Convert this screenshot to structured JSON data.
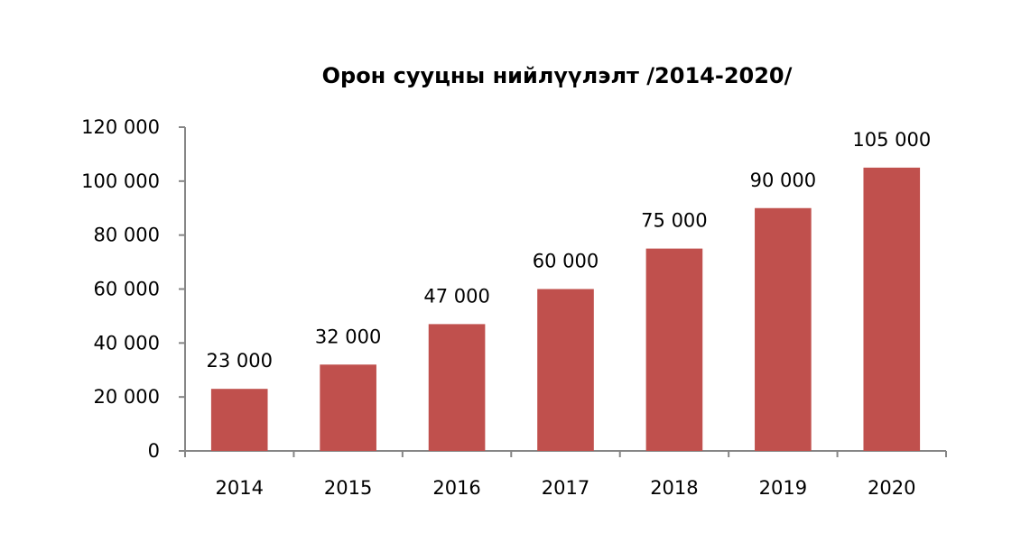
{
  "chart_data": {
    "type": "bar",
    "title": "Орон сууцны нийлүүлэлт /2014-2020/",
    "categories": [
      "2014",
      "2015",
      "2016",
      "2017",
      "2018",
      "2019",
      "2020"
    ],
    "values": [
      23000,
      32000,
      47000,
      60000,
      75000,
      90000,
      105000
    ],
    "data_labels": [
      "23 000",
      "32 000",
      "47 000",
      "60 000",
      "75 000",
      "90 000",
      "105 000"
    ],
    "y_ticks": [
      0,
      20000,
      40000,
      60000,
      80000,
      100000,
      120000
    ],
    "y_tick_labels": [
      "0",
      "20 000",
      "40 000",
      "60 000",
      "80 000",
      "100 000",
      "120 000"
    ],
    "ylim": [
      0,
      120000
    ],
    "xlabel": "",
    "ylabel": "",
    "grid": false,
    "legend": "none",
    "bar_color": "#C0504D",
    "axis_color": "#868686"
  }
}
